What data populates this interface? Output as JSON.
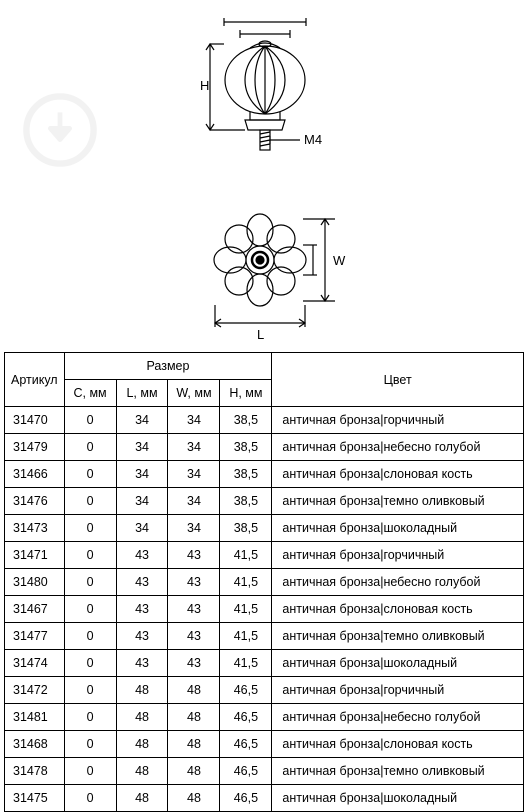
{
  "watermark": {
    "stroke": "#999999"
  },
  "diagram1": {
    "H_label": "H",
    "M4_label": "M4",
    "stroke": "#000000"
  },
  "diagram2": {
    "L_label": "L",
    "W_label": "W",
    "stroke": "#000000"
  },
  "table": {
    "header_article": "Артикул",
    "header_size": "Размер",
    "header_color": "Цвет",
    "col_C": "C, мм",
    "col_L": "L, мм",
    "col_W": "W, мм",
    "col_H": "H, мм",
    "rows": [
      {
        "art": "31470",
        "c": "0",
        "l": "34",
        "w": "34",
        "h": "38,5",
        "color": "античная бронза|горчичный"
      },
      {
        "art": "31479",
        "c": "0",
        "l": "34",
        "w": "34",
        "h": "38,5",
        "color": "античная бронза|небесно голубой"
      },
      {
        "art": "31466",
        "c": "0",
        "l": "34",
        "w": "34",
        "h": "38,5",
        "color": "античная бронза|слоновая кость"
      },
      {
        "art": "31476",
        "c": "0",
        "l": "34",
        "w": "34",
        "h": "38,5",
        "color": "античная бронза|темно оливковый"
      },
      {
        "art": "31473",
        "c": "0",
        "l": "34",
        "w": "34",
        "h": "38,5",
        "color": "античная бронза|шоколадный"
      },
      {
        "art": "31471",
        "c": "0",
        "l": "43",
        "w": "43",
        "h": "41,5",
        "color": "античная бронза|горчичный"
      },
      {
        "art": "31480",
        "c": "0",
        "l": "43",
        "w": "43",
        "h": "41,5",
        "color": "античная бронза|небесно голубой"
      },
      {
        "art": "31467",
        "c": "0",
        "l": "43",
        "w": "43",
        "h": "41,5",
        "color": "античная бронза|слоновая кость"
      },
      {
        "art": "31477",
        "c": "0",
        "l": "43",
        "w": "43",
        "h": "41,5",
        "color": "античная бронза|темно оливковый"
      },
      {
        "art": "31474",
        "c": "0",
        "l": "43",
        "w": "43",
        "h": "41,5",
        "color": "античная бронза|шоколадный"
      },
      {
        "art": "31472",
        "c": "0",
        "l": "48",
        "w": "48",
        "h": "46,5",
        "color": "античная бронза|горчичный"
      },
      {
        "art": "31481",
        "c": "0",
        "l": "48",
        "w": "48",
        "h": "46,5",
        "color": "античная бронза|небесно голубой"
      },
      {
        "art": "31468",
        "c": "0",
        "l": "48",
        "w": "48",
        "h": "46,5",
        "color": "античная бронза|слоновая кость"
      },
      {
        "art": "31478",
        "c": "0",
        "l": "48",
        "w": "48",
        "h": "46,5",
        "color": "античная бронза|темно оливковый"
      },
      {
        "art": "31475",
        "c": "0",
        "l": "48",
        "w": "48",
        "h": "46,5",
        "color": "античная бронза|шоколадный"
      }
    ]
  },
  "col_widths": {
    "art": "58",
    "c": "52",
    "l": "52",
    "w": "52",
    "h": "52",
    "color": "252"
  }
}
